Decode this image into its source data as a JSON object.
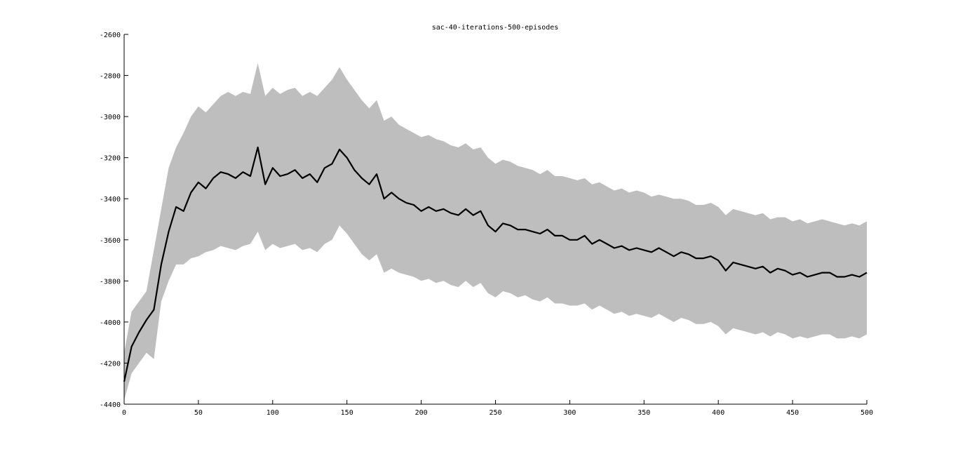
{
  "chart_data": {
    "type": "line",
    "title": "sac-40-iterations-500-episodes",
    "xlabel": "",
    "ylabel": "",
    "xlim": [
      0,
      500
    ],
    "ylim": [
      -4400,
      -2600
    ],
    "xticks": [
      0,
      50,
      100,
      150,
      200,
      250,
      300,
      350,
      400,
      450,
      500
    ],
    "yticks": [
      -2600,
      -2800,
      -3000,
      -3200,
      -3400,
      -3600,
      -3800,
      -4000,
      -4200,
      -4400
    ],
    "grid": false,
    "legend": "none",
    "colors": {
      "mean_line": "#000000",
      "band_fill": "#bebebe",
      "axes": "#000000"
    },
    "series": [
      {
        "role": "mean",
        "x": [
          0,
          5,
          10,
          15,
          20,
          25,
          30,
          35,
          40,
          45,
          50,
          55,
          60,
          65,
          70,
          75,
          80,
          85,
          90,
          95,
          100,
          105,
          110,
          115,
          120,
          125,
          130,
          135,
          140,
          145,
          150,
          155,
          160,
          165,
          170,
          175,
          180,
          185,
          190,
          195,
          200,
          205,
          210,
          215,
          220,
          225,
          230,
          235,
          240,
          245,
          250,
          255,
          260,
          265,
          270,
          275,
          280,
          285,
          290,
          295,
          300,
          305,
          310,
          315,
          320,
          325,
          330,
          335,
          340,
          345,
          350,
          355,
          360,
          365,
          370,
          375,
          380,
          385,
          390,
          395,
          400,
          405,
          410,
          415,
          420,
          425,
          430,
          435,
          440,
          445,
          450,
          455,
          460,
          465,
          470,
          475,
          480,
          485,
          490,
          495,
          500
        ],
        "values": [
          -4290,
          -4120,
          -4050,
          -3990,
          -3940,
          -3720,
          -3560,
          -3440,
          -3460,
          -3370,
          -3320,
          -3350,
          -3300,
          -3270,
          -3280,
          -3300,
          -3270,
          -3290,
          -3150,
          -3330,
          -3250,
          -3290,
          -3280,
          -3260,
          -3300,
          -3280,
          -3320,
          -3250,
          -3230,
          -3160,
          -3200,
          -3260,
          -3300,
          -3330,
          -3280,
          -3400,
          -3370,
          -3400,
          -3420,
          -3430,
          -3460,
          -3440,
          -3460,
          -3450,
          -3470,
          -3480,
          -3450,
          -3480,
          -3460,
          -3530,
          -3560,
          -3520,
          -3530,
          -3550,
          -3550,
          -3560,
          -3570,
          -3550,
          -3580,
          -3580,
          -3600,
          -3600,
          -3580,
          -3620,
          -3600,
          -3620,
          -3640,
          -3630,
          -3650,
          -3640,
          -3650,
          -3660,
          -3640,
          -3660,
          -3680,
          -3660,
          -3670,
          -3690,
          -3690,
          -3680,
          -3700,
          -3750,
          -3710,
          -3720,
          -3730,
          -3740,
          -3730,
          -3760,
          -3740,
          -3750,
          -3770,
          -3760,
          -3780,
          -3770,
          -3760,
          -3760,
          -3780,
          -3780,
          -3770,
          -3780,
          -3760
        ]
      },
      {
        "role": "band_upper",
        "x": [
          0,
          5,
          10,
          15,
          20,
          25,
          30,
          35,
          40,
          45,
          50,
          55,
          60,
          65,
          70,
          75,
          80,
          85,
          90,
          95,
          100,
          105,
          110,
          115,
          120,
          125,
          130,
          135,
          140,
          145,
          150,
          155,
          160,
          165,
          170,
          175,
          180,
          185,
          190,
          195,
          200,
          205,
          210,
          215,
          220,
          225,
          230,
          235,
          240,
          245,
          250,
          255,
          260,
          265,
          270,
          275,
          280,
          285,
          290,
          295,
          300,
          305,
          310,
          315,
          320,
          325,
          330,
          335,
          340,
          345,
          350,
          355,
          360,
          365,
          370,
          375,
          380,
          385,
          390,
          395,
          400,
          405,
          410,
          415,
          420,
          425,
          430,
          435,
          440,
          445,
          450,
          455,
          460,
          465,
          470,
          475,
          480,
          485,
          490,
          495,
          500
        ],
        "values": [
          -4150,
          -3950,
          -3900,
          -3850,
          -3650,
          -3450,
          -3250,
          -3150,
          -3080,
          -3000,
          -2950,
          -2980,
          -2940,
          -2900,
          -2880,
          -2900,
          -2880,
          -2890,
          -2740,
          -2900,
          -2860,
          -2890,
          -2870,
          -2860,
          -2900,
          -2880,
          -2900,
          -2860,
          -2820,
          -2760,
          -2820,
          -2870,
          -2920,
          -2960,
          -2920,
          -3020,
          -3000,
          -3040,
          -3060,
          -3080,
          -3100,
          -3090,
          -3110,
          -3120,
          -3140,
          -3150,
          -3130,
          -3160,
          -3150,
          -3200,
          -3230,
          -3210,
          -3220,
          -3240,
          -3250,
          -3260,
          -3280,
          -3260,
          -3290,
          -3290,
          -3300,
          -3310,
          -3300,
          -3330,
          -3320,
          -3340,
          -3360,
          -3350,
          -3370,
          -3360,
          -3370,
          -3390,
          -3380,
          -3390,
          -3400,
          -3400,
          -3410,
          -3430,
          -3430,
          -3420,
          -3440,
          -3480,
          -3450,
          -3460,
          -3470,
          -3480,
          -3470,
          -3500,
          -3490,
          -3490,
          -3510,
          -3500,
          -3520,
          -3510,
          -3500,
          -3510,
          -3520,
          -3530,
          -3520,
          -3530,
          -3510
        ]
      },
      {
        "role": "band_lower",
        "x": [
          0,
          5,
          10,
          15,
          20,
          25,
          30,
          35,
          40,
          45,
          50,
          55,
          60,
          65,
          70,
          75,
          80,
          85,
          90,
          95,
          100,
          105,
          110,
          115,
          120,
          125,
          130,
          135,
          140,
          145,
          150,
          155,
          160,
          165,
          170,
          175,
          180,
          185,
          190,
          195,
          200,
          205,
          210,
          215,
          220,
          225,
          230,
          235,
          240,
          245,
          250,
          255,
          260,
          265,
          270,
          275,
          280,
          285,
          290,
          295,
          300,
          305,
          310,
          315,
          320,
          325,
          330,
          335,
          340,
          345,
          350,
          355,
          360,
          365,
          370,
          375,
          380,
          385,
          390,
          395,
          400,
          405,
          410,
          415,
          420,
          425,
          430,
          435,
          440,
          445,
          450,
          455,
          460,
          465,
          470,
          475,
          480,
          485,
          490,
          495,
          500
        ],
        "values": [
          -4380,
          -4250,
          -4200,
          -4150,
          -4180,
          -3900,
          -3800,
          -3720,
          -3720,
          -3690,
          -3680,
          -3660,
          -3650,
          -3630,
          -3640,
          -3650,
          -3630,
          -3620,
          -3560,
          -3650,
          -3620,
          -3640,
          -3630,
          -3620,
          -3650,
          -3640,
          -3660,
          -3620,
          -3600,
          -3530,
          -3570,
          -3620,
          -3670,
          -3700,
          -3670,
          -3760,
          -3740,
          -3760,
          -3770,
          -3780,
          -3800,
          -3790,
          -3810,
          -3800,
          -3820,
          -3830,
          -3800,
          -3830,
          -3810,
          -3860,
          -3880,
          -3850,
          -3860,
          -3880,
          -3870,
          -3890,
          -3900,
          -3880,
          -3910,
          -3910,
          -3920,
          -3920,
          -3910,
          -3940,
          -3920,
          -3940,
          -3960,
          -3950,
          -3970,
          -3960,
          -3970,
          -3980,
          -3960,
          -3980,
          -4000,
          -3980,
          -3990,
          -4010,
          -4010,
          -4000,
          -4020,
          -4060,
          -4030,
          -4040,
          -4050,
          -4060,
          -4050,
          -4070,
          -4050,
          -4060,
          -4080,
          -4070,
          -4080,
          -4070,
          -4060,
          -4060,
          -4080,
          -4080,
          -4070,
          -4080,
          -4060
        ]
      }
    ]
  }
}
